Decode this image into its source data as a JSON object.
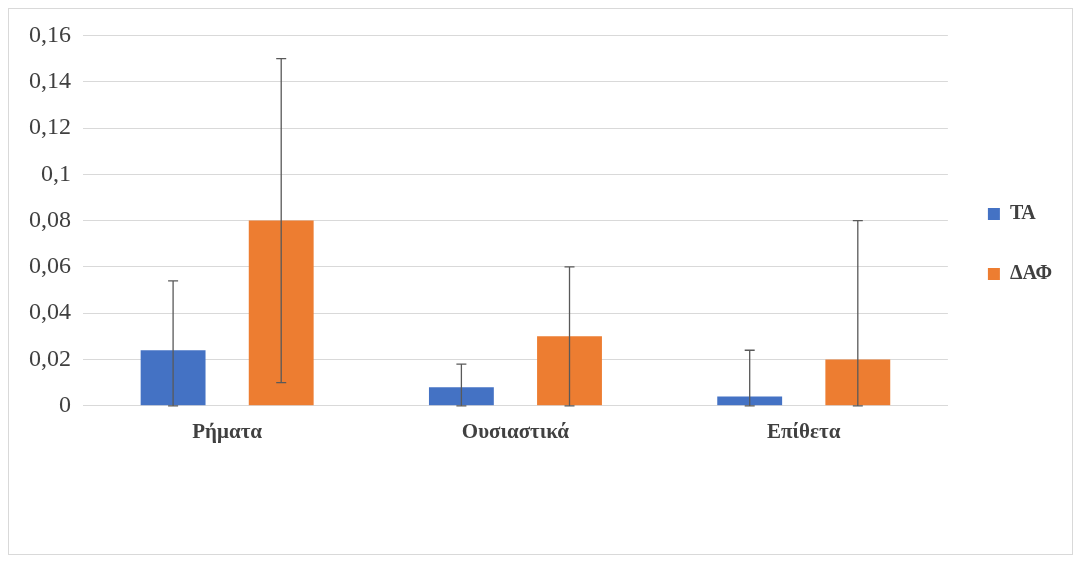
{
  "chart_data": {
    "type": "bar",
    "categories": [
      "Ρήματα",
      "Ουσιαστικά",
      "Επίθετα"
    ],
    "series": [
      {
        "name": "ΤΑ",
        "color": "#4472c4",
        "values": [
          0.024,
          0.008,
          0.004
        ],
        "errors": [
          [
            0,
            0.054
          ],
          [
            0,
            0.018
          ],
          [
            0,
            0.024
          ]
        ]
      },
      {
        "name": "ΔΑΦ",
        "color": "#ed7d31",
        "values": [
          0.08,
          0.03,
          0.02
        ],
        "errors": [
          [
            0.01,
            0.15
          ],
          [
            0,
            0.06
          ],
          [
            0,
            0.08
          ]
        ]
      }
    ],
    "ylim": [
      0,
      0.16
    ],
    "yticks": [
      0,
      {
        "value": 0.02,
        "label": "0,02"
      },
      {
        "value": 0.04,
        "label": "0,04"
      },
      {
        "value": 0.06,
        "label": "0,06"
      },
      {
        "value": 0.08,
        "label": "0,08"
      },
      {
        "value": 0.1,
        "label": "0,1"
      },
      {
        "value": 0.12,
        "label": "0,12"
      },
      {
        "value": 0.14,
        "label": "0,14"
      },
      {
        "value": 0.16,
        "label": "0,16"
      }
    ],
    "grid": "y",
    "legend": "right"
  }
}
